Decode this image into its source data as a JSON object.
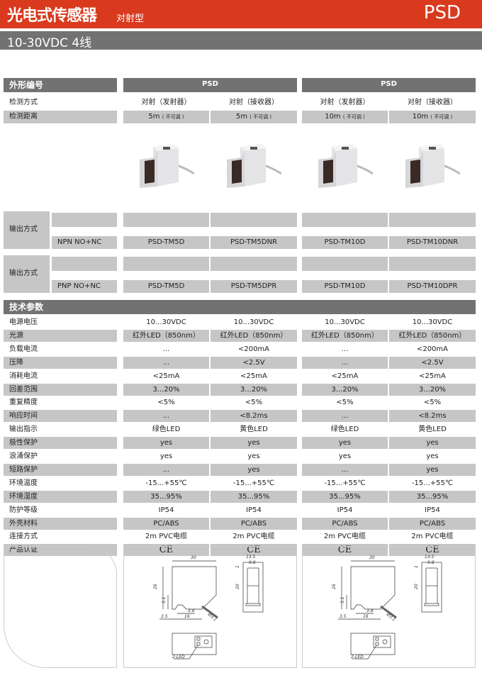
{
  "header": {
    "title": "光电式传感器",
    "subtitle": "对射型",
    "model": "PSD"
  },
  "subheader": "10-30VDC 4线",
  "shape_label": "外形编号",
  "groups": [
    "PSD",
    "PSD"
  ],
  "detect_mode": {
    "label": "检测方式",
    "values": [
      "对射（发射器）",
      "对射（接收器）",
      "对射（发射器）",
      "对射（接收器）"
    ]
  },
  "detect_distance": {
    "label": "检测距离",
    "values": [
      "5m",
      "5m",
      "10m",
      "10m"
    ],
    "note": "( 不可调 )"
  },
  "output_npn": {
    "label": "输出方式",
    "type": "NPN NO+NC",
    "values": [
      "PSD-TM5D",
      "PSD-TM5DNR",
      "PSD-TM10D",
      "PSD-TM10DNR"
    ]
  },
  "output_pnp": {
    "label": "输出方式",
    "type": "PNP NO+NC",
    "values": [
      "PSD-TM5D",
      "PSD-TM5DPR",
      "PSD-TM10D",
      "PSD-TM10DPR"
    ]
  },
  "tech_label": "技术参数",
  "specs": [
    {
      "label": "电源电压",
      "values": [
        "10...30VDC",
        "10...30VDC",
        "10...30VDC",
        "10...30VDC"
      ]
    },
    {
      "label": "光源",
      "values": [
        "红外LED（850nm）",
        "红外LED（850nm）",
        "红外LED（850nm）",
        "红外LED（850nm）"
      ]
    },
    {
      "label": "负载电流",
      "values": [
        "...",
        "<200mA",
        "...",
        "<200mA"
      ]
    },
    {
      "label": "压降",
      "values": [
        "...",
        "<2.5V",
        "...",
        "<2.5V"
      ]
    },
    {
      "label": "消耗电流",
      "values": [
        "<25mA",
        "<25mA",
        "<25mA",
        "<25mA"
      ]
    },
    {
      "label": "回差范围",
      "values": [
        "3...20%",
        "3...20%",
        "3...20%",
        "3...20%"
      ]
    },
    {
      "label": "重复精度",
      "values": [
        "<5%",
        "<5%",
        "<5%",
        "<5%"
      ]
    },
    {
      "label": "响应时间",
      "values": [
        "...",
        "<8.2ms",
        "...",
        "<8.2ms"
      ]
    },
    {
      "label": "输出指示",
      "values": [
        "绿色LED",
        "黄色LED",
        "绿色LED",
        "黄色LED"
      ]
    },
    {
      "label": "极性保护",
      "values": [
        "yes",
        "yes",
        "yes",
        "yes"
      ]
    },
    {
      "label": "浪涌保护",
      "values": [
        "yes",
        "yes",
        "yes",
        "yes"
      ]
    },
    {
      "label": "短路保护",
      "values": [
        "...",
        "yes",
        "...",
        "yes"
      ]
    },
    {
      "label": "环境温度",
      "values": [
        "-15...+55℃",
        "-15...+55℃",
        "-15...+55℃",
        "-15...+55℃"
      ]
    },
    {
      "label": "环境湿度",
      "values": [
        "35...95%",
        "35...95%",
        "35...95%",
        "35...95%"
      ]
    },
    {
      "label": "防护等级",
      "values": [
        "IP54",
        "IP54",
        "IP54",
        "IP54"
      ]
    },
    {
      "label": "外壳材料",
      "values": [
        "PC/ABS",
        "PC/ABS",
        "PC/ABS",
        "PC/ABS"
      ]
    },
    {
      "label": "连接方式",
      "values": [
        "2m PVC电缆",
        "2m PVC电缆",
        "2m PVC电缆",
        "2m PVC电缆"
      ]
    },
    {
      "label": "产品认证",
      "values": [
        "CE",
        "CE",
        "CE",
        "CE"
      ]
    }
  ],
  "drawing": {
    "dims": [
      "30",
      "26",
      "3.1",
      "3.8",
      "3.5",
      "16",
      "Ø3.1",
      "13.5",
      "9.8",
      "1",
      "20"
    ],
    "led_label": "2-LED"
  },
  "colors": {
    "brand": "#d93a1d",
    "bar": "#737272",
    "cell": "#c6c6c6"
  }
}
